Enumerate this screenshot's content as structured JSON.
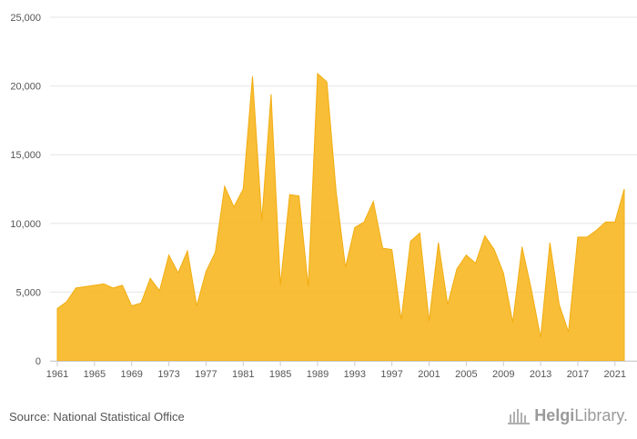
{
  "chart_data": {
    "type": "area",
    "x": [
      1961,
      1962,
      1963,
      1964,
      1965,
      1966,
      1967,
      1968,
      1969,
      1970,
      1971,
      1972,
      1973,
      1974,
      1975,
      1976,
      1977,
      1978,
      1979,
      1980,
      1981,
      1982,
      1983,
      1984,
      1985,
      1986,
      1987,
      1988,
      1989,
      1990,
      1991,
      1992,
      1993,
      1994,
      1995,
      1996,
      1997,
      1998,
      1999,
      2000,
      2001,
      2002,
      2003,
      2004,
      2005,
      2006,
      2007,
      2008,
      2009,
      2010,
      2011,
      2012,
      2013,
      2014,
      2015,
      2016,
      2017,
      2018,
      2019,
      2020,
      2021,
      2022
    ],
    "series": [
      {
        "values": [
          3800,
          4300,
          5300,
          5400,
          5500,
          5600,
          5300,
          5500,
          4000,
          4200,
          6000,
          5100,
          7700,
          6400,
          8000,
          4000,
          6500,
          7900,
          12700,
          11200,
          12500,
          20700,
          10200,
          19400,
          5500,
          12100,
          12000,
          5400,
          20900,
          20300,
          12300,
          6800,
          9700,
          10100,
          11600,
          8200,
          8100,
          3000,
          8700,
          9300,
          2900,
          8600,
          4100,
          6700,
          7700,
          7100,
          9100,
          8100,
          6400,
          2800,
          8300,
          5200,
          1700,
          8600,
          4100,
          2100,
          9000,
          9000,
          9500,
          10100,
          10100,
          12500
        ],
        "color": "#f7b827"
      }
    ],
    "ylim": [
      0,
      25000
    ],
    "yticks": [
      "0",
      "5,000",
      "10,000",
      "15,000",
      "20,000",
      "25,000"
    ],
    "xticks": [
      1961,
      1965,
      1969,
      1973,
      1977,
      1981,
      1985,
      1989,
      1993,
      1997,
      2001,
      2005,
      2009,
      2013,
      2017,
      2021
    ],
    "grid": true,
    "legend": "none"
  },
  "footer": {
    "source": "Source: National Statistical Office",
    "logo_bold": "Helgi",
    "logo_light": "Library."
  }
}
